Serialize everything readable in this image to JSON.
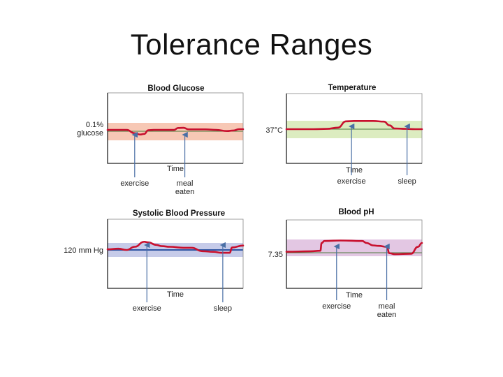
{
  "title": "Tolerance Ranges",
  "colors": {
    "trace": "#c8102e",
    "axis": "#222222",
    "arrow": "#4a6fa5",
    "setline_default": "#4c7a3c",
    "setline_pressure": "#2f55a3",
    "band_glucose": "#f7c8b5",
    "band_temperature": "#dcecc0",
    "band_pressure": "#c6cbe9",
    "band_ph": "#e3c7e3"
  },
  "chart_data": [
    {
      "type": "line",
      "title": "Blood Glucose",
      "xlabel": "Time",
      "set_point_label": [
        "0.1%",
        "glucose"
      ],
      "band_color_key": "band_glucose",
      "setline_color_key": "setline_default",
      "x": [
        0,
        0.04,
        0.14,
        0.2,
        0.24,
        0.27,
        0.3,
        0.34,
        0.4,
        0.49,
        0.52,
        0.56,
        0.6,
        0.64,
        0.72,
        0.8,
        0.88,
        0.93,
        0.97,
        1.0
      ],
      "y": [
        0.35,
        0.35,
        0.35,
        -0.5,
        -0.85,
        -0.7,
        0.25,
        0.35,
        0.35,
        0.35,
        0.85,
        0.9,
        0.5,
        0.5,
        0.5,
        0.35,
        0.05,
        0.2,
        0.55,
        0.55
      ],
      "events": [
        {
          "label": [
            "exercise"
          ],
          "x": 0.2
        },
        {
          "label": [
            "meal",
            "eaten"
          ],
          "x": 0.57
        }
      ]
    },
    {
      "type": "line",
      "title": "Temperature",
      "xlabel": "Time",
      "set_point_label": [
        "37°C"
      ],
      "band_color_key": "band_temperature",
      "setline_color_key": "setline_default",
      "x": [
        0,
        0.2,
        0.3,
        0.38,
        0.44,
        0.5,
        0.56,
        0.64,
        0.72,
        0.76,
        0.8,
        0.88,
        0.95,
        1.0
      ],
      "y": [
        0,
        0,
        0.05,
        0.25,
        1.25,
        1.3,
        1.3,
        1.3,
        1.2,
        0.6,
        0.1,
        0.05,
        0,
        0
      ],
      "events": [
        {
          "label": [
            "exercise"
          ],
          "x": 0.48
        },
        {
          "label": [
            "sleep"
          ],
          "x": 0.89
        }
      ]
    },
    {
      "type": "line",
      "title": "Systolic Blood Pressure",
      "xlabel": "Time",
      "set_point_label": [
        "120 mm Hg"
      ],
      "band_color_key": "band_pressure",
      "setline_color_key": "setline_pressure",
      "x": [
        0,
        0.08,
        0.14,
        0.2,
        0.27,
        0.3,
        0.36,
        0.4,
        0.46,
        0.56,
        0.62,
        0.7,
        0.78,
        0.84,
        0.9,
        0.92,
        1.0
      ],
      "y": [
        0.1,
        0.2,
        0,
        0.5,
        1.3,
        1.2,
        0.8,
        0.6,
        0.5,
        0.35,
        0.35,
        -0.2,
        -0.3,
        -0.45,
        -0.45,
        0.4,
        0.7
      ],
      "events": [
        {
          "label": [
            "exercise"
          ],
          "x": 0.29
        },
        {
          "label": [
            "sleep"
          ],
          "x": 0.85
        }
      ]
    },
    {
      "type": "line",
      "title": "Blood pH",
      "xlabel": "Time",
      "set_point_label": [
        "7.35"
      ],
      "band_color_key": "band_ph",
      "setline_color_key": "setline_default",
      "x": [
        0,
        0.18,
        0.25,
        0.26,
        0.28,
        0.4,
        0.56,
        0.59,
        0.64,
        0.68,
        0.74,
        0.76,
        0.8,
        0.92,
        0.97,
        1.0
      ],
      "y": [
        0.1,
        0.15,
        0.2,
        1.0,
        1.2,
        1.25,
        1.2,
        1.0,
        0.75,
        0.7,
        0.6,
        -0.05,
        -0.15,
        -0.1,
        0.6,
        1.0
      ],
      "events": [
        {
          "label": [
            "exercise"
          ],
          "x": 0.37
        },
        {
          "label": [
            "meal",
            "eaten"
          ],
          "x": 0.74
        }
      ]
    }
  ]
}
